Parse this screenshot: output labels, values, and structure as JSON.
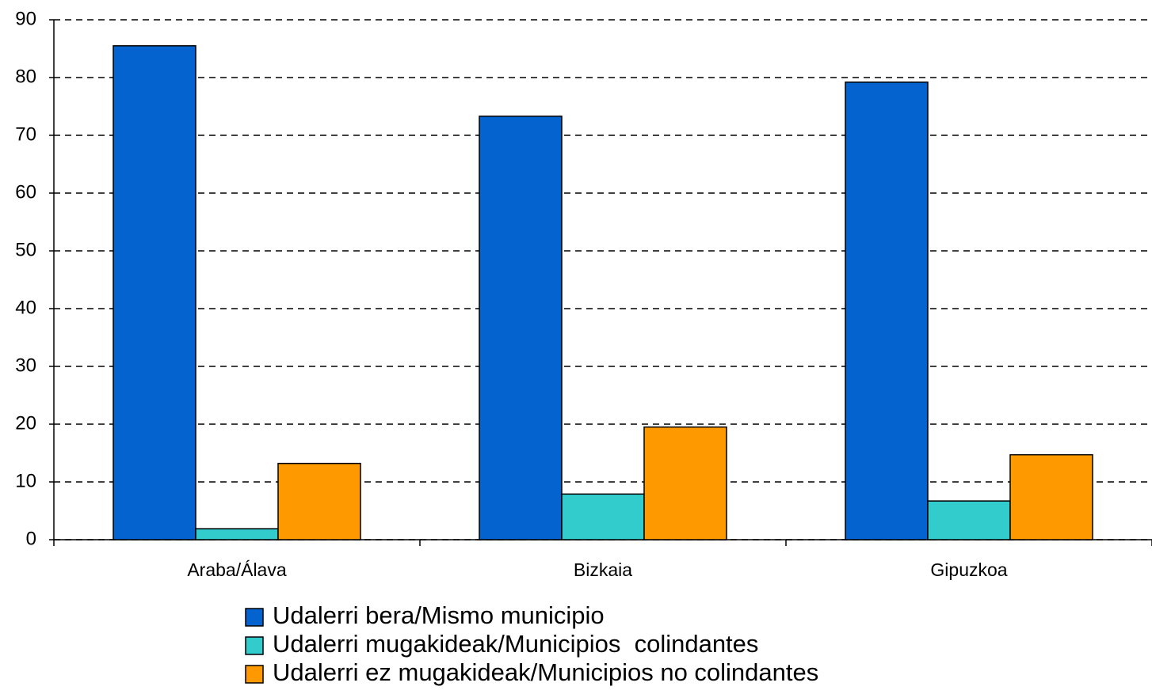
{
  "chart_data": {
    "type": "bar",
    "categories": [
      "Araba/Álava",
      "Bizkaia",
      "Gipuzkoa"
    ],
    "series": [
      {
        "name": "Udalerri bera/Mismo municipio",
        "color": "#0563cf",
        "values": [
          85.5,
          73.3,
          79.2
        ]
      },
      {
        "name": "Udalerri mugakideak/Municipios  colindantes",
        "color": "#33cccc",
        "values": [
          1.9,
          7.9,
          6.7
        ]
      },
      {
        "name": "Udalerri ez mugakideak/Municipios no colindantes",
        "color": "#ff9900",
        "values": [
          13.2,
          19.5,
          14.7
        ]
      }
    ],
    "ylim": [
      0,
      90
    ],
    "yticks": [
      0,
      10,
      20,
      30,
      40,
      50,
      60,
      70,
      80,
      90
    ],
    "grid": true
  }
}
